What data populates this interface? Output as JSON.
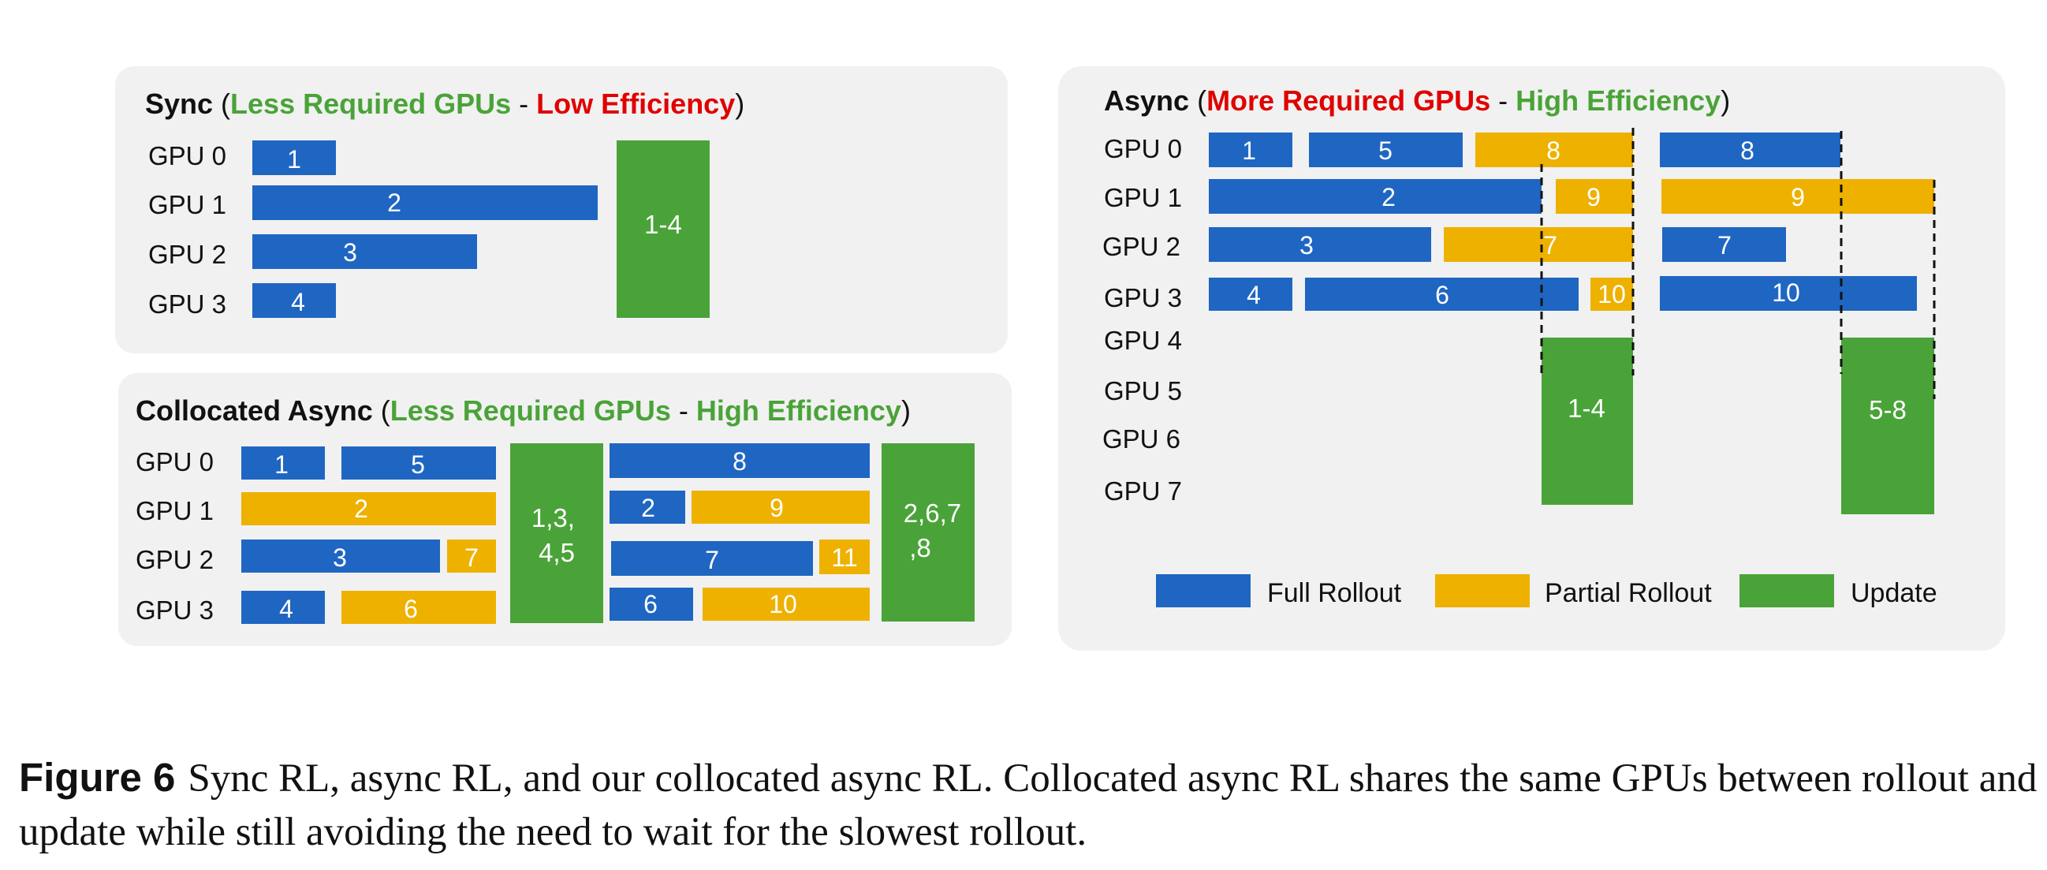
{
  "colors": {
    "full_rollout": "#1f66c2",
    "partial_rollout": "#eeb100",
    "update": "#4aa338",
    "panel_bg": "#f1f1f1",
    "highlight_green": "#4aa338",
    "highlight_red": "#e00000"
  },
  "panels": {
    "sync": {
      "title": "Sync",
      "paren_open": " (",
      "gpu_phrase": "Less Required GPUs",
      "separator": " - ",
      "efficiency_phrase": "Low Efficiency",
      "paren_close": ")",
      "gpus": [
        "GPU 0",
        "GPU 1",
        "GPU 2",
        "GPU 3"
      ],
      "blocks": [
        {
          "label": "1",
          "kind": "full_rollout"
        },
        {
          "label": "2",
          "kind": "full_rollout"
        },
        {
          "label": "3",
          "kind": "full_rollout"
        },
        {
          "label": "4",
          "kind": "full_rollout"
        },
        {
          "label": "1-4",
          "kind": "update"
        }
      ]
    },
    "collocated": {
      "title": "Collocated Async",
      "paren_open": " (",
      "gpu_phrase": "Less Required GPUs",
      "separator": " - ",
      "efficiency_phrase": "High Efficiency",
      "paren_close": ")",
      "gpus": [
        "GPU 0",
        "GPU 1",
        "GPU 2",
        "GPU 3"
      ],
      "blocks": [
        {
          "label": "1",
          "kind": "full_rollout"
        },
        {
          "label": "5",
          "kind": "full_rollout"
        },
        {
          "label": "2",
          "kind": "partial_rollout"
        },
        {
          "label": "3",
          "kind": "full_rollout"
        },
        {
          "label": "7",
          "kind": "partial_rollout"
        },
        {
          "label": "4",
          "kind": "full_rollout"
        },
        {
          "label": "6",
          "kind": "partial_rollout"
        },
        {
          "label_lines": [
            "1,3,",
            "4,5"
          ],
          "kind": "update"
        },
        {
          "label": "8",
          "kind": "full_rollout"
        },
        {
          "label": "2",
          "kind": "full_rollout"
        },
        {
          "label": "9",
          "kind": "partial_rollout"
        },
        {
          "label": "7",
          "kind": "full_rollout"
        },
        {
          "label": "11",
          "kind": "partial_rollout"
        },
        {
          "label": "6",
          "kind": "full_rollout"
        },
        {
          "label": "10",
          "kind": "partial_rollout"
        },
        {
          "label_lines": [
            "2,6,7",
            ",8"
          ],
          "kind": "update"
        }
      ]
    },
    "async": {
      "title": "Async",
      "paren_open": " (",
      "gpu_phrase": "More Required GPUs",
      "separator": " - ",
      "efficiency_phrase": "High Efficiency",
      "paren_close": ")",
      "gpus": [
        "GPU 0",
        "GPU 1",
        "GPU 2",
        "GPU 3",
        "GPU 4",
        "GPU 5",
        "GPU 6",
        "GPU 7"
      ],
      "blocks": [
        {
          "label": "1",
          "kind": "full_rollout"
        },
        {
          "label": "5",
          "kind": "full_rollout"
        },
        {
          "label": "8",
          "kind": "partial_rollout"
        },
        {
          "label": "8",
          "kind": "full_rollout"
        },
        {
          "label": "2",
          "kind": "full_rollout"
        },
        {
          "label": "9",
          "kind": "partial_rollout"
        },
        {
          "label": "9",
          "kind": "partial_rollout"
        },
        {
          "label": "3",
          "kind": "full_rollout"
        },
        {
          "label": "7",
          "kind": "partial_rollout"
        },
        {
          "label": "7",
          "kind": "full_rollout"
        },
        {
          "label": "4",
          "kind": "full_rollout"
        },
        {
          "label": "6",
          "kind": "full_rollout"
        },
        {
          "label": "10",
          "kind": "partial_rollout"
        },
        {
          "label": "10",
          "kind": "full_rollout"
        },
        {
          "label": "1-4",
          "kind": "update"
        },
        {
          "label": "5-8",
          "kind": "update"
        }
      ]
    }
  },
  "legend": [
    {
      "label": "Full Rollout",
      "kind": "full_rollout"
    },
    {
      "label": "Partial Rollout",
      "kind": "partial_rollout"
    },
    {
      "label": "Update",
      "kind": "update"
    }
  ],
  "caption": {
    "label": "Figure 6",
    "text": "Sync RL, async RL, and our collocated async RL. Collocated async RL shares the same GPUs between rollout and update while still avoiding the need to wait for the slowest rollout."
  }
}
